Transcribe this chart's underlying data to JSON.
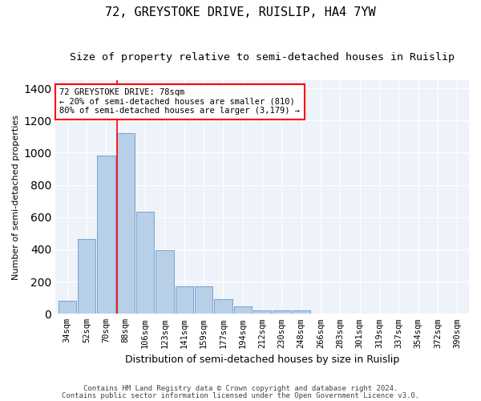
{
  "title": "72, GREYSTOKE DRIVE, RUISLIP, HA4 7YW",
  "subtitle": "Size of property relative to semi-detached houses in Ruislip",
  "xlabel": "Distribution of semi-detached houses by size in Ruislip",
  "ylabel": "Number of semi-detached properties",
  "categories": [
    "34sqm",
    "52sqm",
    "70sqm",
    "88sqm",
    "106sqm",
    "123sqm",
    "141sqm",
    "159sqm",
    "177sqm",
    "194sqm",
    "212sqm",
    "230sqm",
    "248sqm",
    "266sqm",
    "283sqm",
    "301sqm",
    "319sqm",
    "337sqm",
    "354sqm",
    "372sqm",
    "390sqm"
  ],
  "values": [
    80,
    465,
    980,
    1120,
    635,
    395,
    170,
    170,
    90,
    45,
    20,
    20,
    20,
    0,
    0,
    0,
    0,
    0,
    0,
    0,
    0
  ],
  "bar_color": "#b8cfe8",
  "bar_edge_color": "#6699cc",
  "ylim": [
    0,
    1450
  ],
  "annotation_text": "72 GREYSTOKE DRIVE: 78sqm\n← 20% of semi-detached houses are smaller (810)\n80% of semi-detached houses are larger (3,179) →",
  "red_line_x": 2.56,
  "footnote1": "Contains HM Land Registry data © Crown copyright and database right 2024.",
  "footnote2": "Contains public sector information licensed under the Open Government Licence v3.0.",
  "bg_color": "#eef2f9",
  "grid_color": "#ffffff",
  "title_fontsize": 11,
  "subtitle_fontsize": 9.5,
  "xlabel_fontsize": 9,
  "ylabel_fontsize": 8,
  "tick_fontsize": 7.5,
  "annotation_fontsize": 7.5,
  "footnote_fontsize": 6.5
}
